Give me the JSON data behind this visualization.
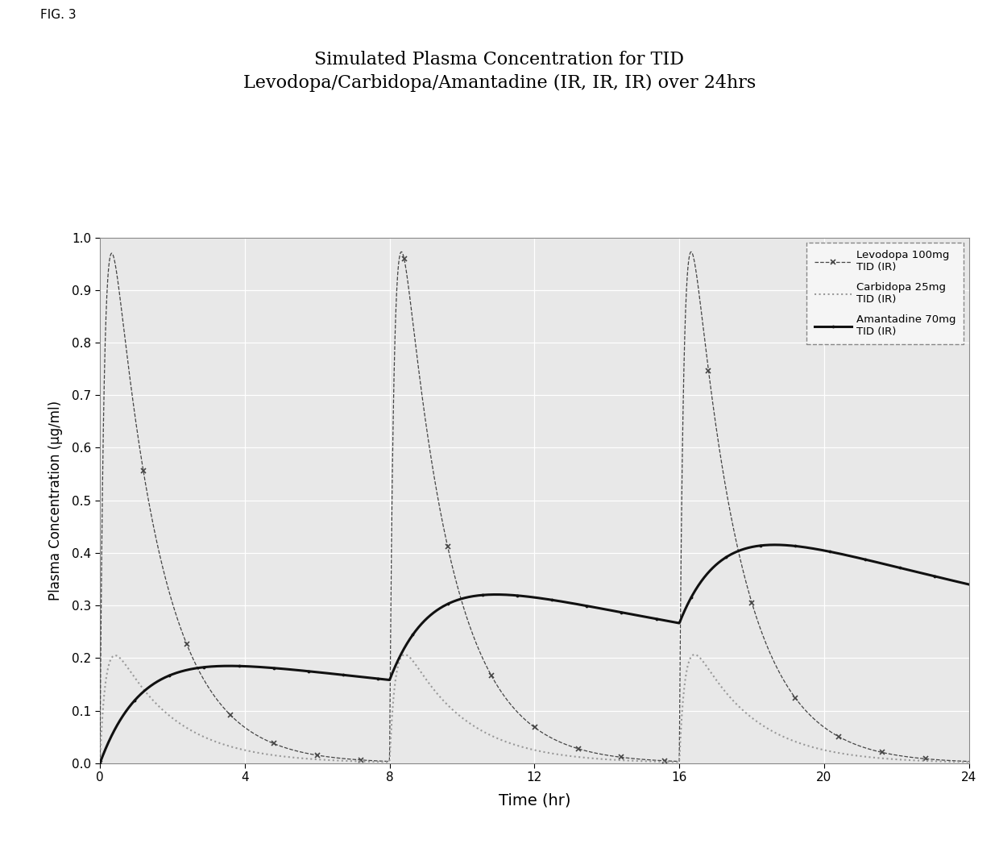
{
  "title_line1": "Simulated Plasma Concentration for TID",
  "title_line2": "Levodopa/Carbidopa/Amantadine (IR, IR, IR) over 24hrs",
  "fig_label": "FIG. 3",
  "xlabel": "Time (hr)",
  "ylabel": "Plasma Concentration (μg/ml)",
  "xlim": [
    0,
    24
  ],
  "ylim": [
    0,
    1.0
  ],
  "xticks": [
    0,
    4,
    8,
    12,
    16,
    20,
    24
  ],
  "yticks": [
    0,
    0.1,
    0.2,
    0.3,
    0.4,
    0.5,
    0.6,
    0.7,
    0.8,
    0.9,
    1.0
  ],
  "legend": [
    "Levodopa 100mg\nTID (IR)",
    "Carbidopa 25mg\nTID (IR)",
    "Amantadine 70mg\nTID (IR)"
  ],
  "levodopa_color": "#444444",
  "carbidopa_color": "#999999",
  "amantadine_color": "#111111",
  "background_color": "#ffffff",
  "plot_bg_color": "#e8e8e8",
  "grid_color": "#ffffff",
  "dose_times": [
    0,
    8,
    16
  ],
  "levo_peak": 0.97,
  "levo_ka": 8.0,
  "levo_ke": 0.75,
  "carbi_peak": 0.205,
  "carbi_ka": 6.0,
  "carbi_ke": 0.62,
  "amant_peak_single": 0.185,
  "amant_ka": 0.85,
  "amant_ke": 0.048
}
